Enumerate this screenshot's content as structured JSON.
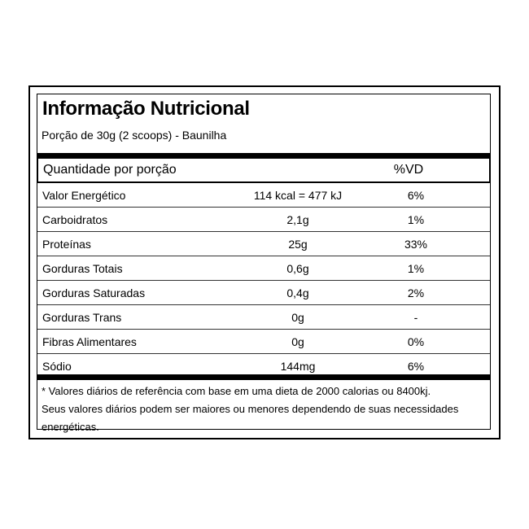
{
  "label": {
    "title": "Informação Nutricional",
    "serving": "Porção de 30g (2 scoops) - Baunilha",
    "header": {
      "amount_label": "Quantidade por porção",
      "dv_label": "%VD"
    },
    "rows": [
      {
        "name": "Valor Energético",
        "amount": "114 kcal = 477 kJ",
        "dv": "6%"
      },
      {
        "name": "Carboidratos",
        "amount": "2,1g",
        "dv": "1%"
      },
      {
        "name": "Proteínas",
        "amount": "25g",
        "dv": "33%"
      },
      {
        "name": "Gorduras Totais",
        "amount": "0,6g",
        "dv": "1%"
      },
      {
        "name": "Gorduras Saturadas",
        "amount": "0,4g",
        "dv": "2%"
      },
      {
        "name": "Gorduras Trans",
        "amount": "0g",
        "dv": "-"
      },
      {
        "name": "Fibras Alimentares",
        "amount": "0g",
        "dv": "0%"
      },
      {
        "name": "Sódio",
        "amount": "144mg",
        "dv": "6%"
      }
    ],
    "footnote": {
      "line1": "* Valores diários de referência com base em uma dieta de 2000 calorias ou 8400kj.",
      "line2": "Seus valores diários podem ser maiores ou menores dependendo de suas necessidades",
      "line3": "energéticas."
    }
  }
}
